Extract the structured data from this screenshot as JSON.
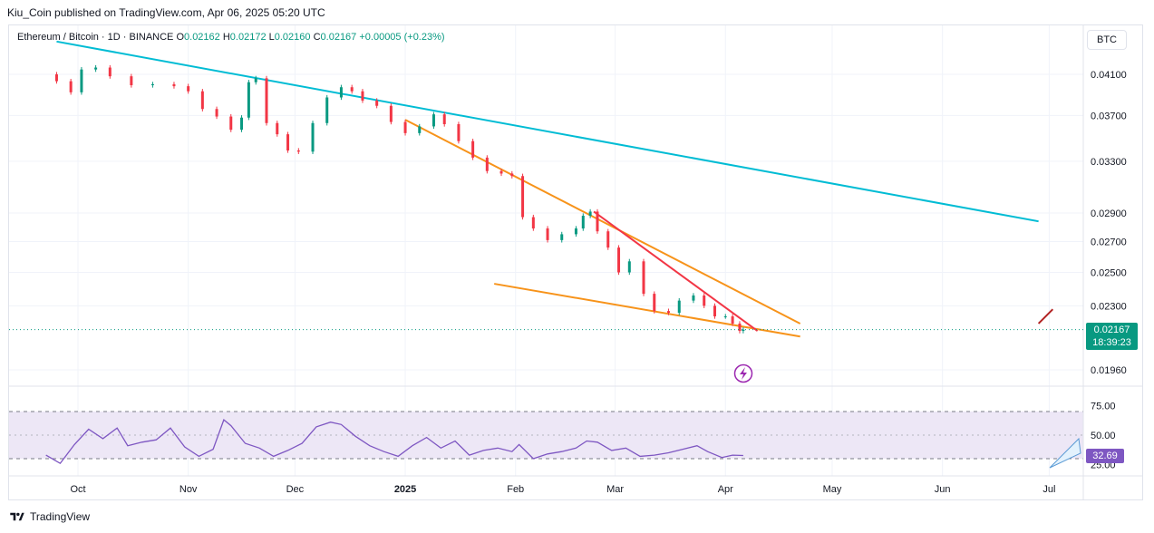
{
  "header": {
    "published_text": "Kiu_Coin published on TradingView.com, Apr 06, 2025 05:20 UTC"
  },
  "legend": {
    "symbol": "Ethereum / Bitcoin · 1D · BINANCE",
    "o_label": "O",
    "o_value": "0.02162",
    "h_label": "H",
    "h_value": "0.02172",
    "l_label": "L",
    "l_value": "0.02160",
    "c_label": "C",
    "c_value": "0.02167",
    "change": "+0.00005 (+0.23%)"
  },
  "currency_button": "BTC",
  "last_price": {
    "value": "0.02167",
    "countdown": "18:39:23"
  },
  "rsi_value": "32.69",
  "footer": {
    "brand": "TradingView"
  },
  "colors": {
    "up": "#089981",
    "down": "#f23645",
    "channel": "#f7931a",
    "trendline_long": "#00bcd4",
    "trendline_short": "#f23645",
    "rsi": "#7e57c2",
    "rsi_band": "#ede7f6"
  },
  "chart_data": [
    {
      "type": "candlestick",
      "title": "Ethereum / Bitcoin · 1D · BINANCE",
      "x_ticks": [
        "Oct",
        "Nov",
        "Dec",
        "2025",
        "Feb",
        "Mar",
        "Apr",
        "May",
        "Jun",
        "Jul"
      ],
      "x_tick_dates": [
        "2024-10-01",
        "2024-11-01",
        "2024-12-01",
        "2025-01-01",
        "2025-02-01",
        "2025-03-01",
        "2025-04-01",
        "2025-05-01",
        "2025-06-01",
        "2025-07-01"
      ],
      "y_ticks": [
        "0.04100",
        "0.03700",
        "0.03300",
        "0.02900",
        "0.02700",
        "0.02500",
        "0.02300",
        "0.01960"
      ],
      "y_tick_values": [
        0.041,
        0.037,
        0.033,
        0.029,
        0.027,
        0.025,
        0.023,
        0.0196
      ],
      "y_scale": "log",
      "ylim": [
        0.0192,
        0.0442
      ],
      "last_close": 0.02167,
      "grid": true,
      "close_series": [
        [
          "2024-09-22",
          0.041
        ],
        [
          "2024-09-25",
          0.0403
        ],
        [
          "2024-09-29",
          0.0392
        ],
        [
          "2024-10-02",
          0.0415
        ],
        [
          "2024-10-06",
          0.0417
        ],
        [
          "2024-10-10",
          0.0408
        ],
        [
          "2024-10-16",
          0.0399
        ],
        [
          "2024-10-22",
          0.04
        ],
        [
          "2024-10-28",
          0.0398
        ],
        [
          "2024-11-01",
          0.0393
        ],
        [
          "2024-11-05",
          0.0376
        ],
        [
          "2024-11-09",
          0.0369
        ],
        [
          "2024-11-13",
          0.0357
        ],
        [
          "2024-11-16",
          0.0368
        ],
        [
          "2024-11-18",
          0.0402
        ],
        [
          "2024-11-20",
          0.0406
        ],
        [
          "2024-11-23",
          0.0363
        ],
        [
          "2024-11-26",
          0.0353
        ],
        [
          "2024-11-29",
          0.0339
        ],
        [
          "2024-12-02",
          0.0338
        ],
        [
          "2024-12-06",
          0.0363
        ],
        [
          "2024-12-10",
          0.0387
        ],
        [
          "2024-12-14",
          0.0397
        ],
        [
          "2024-12-17",
          0.0393
        ],
        [
          "2024-12-20",
          0.0384
        ],
        [
          "2024-12-24",
          0.0379
        ],
        [
          "2024-12-28",
          0.0364
        ],
        [
          "2025-01-01",
          0.0354
        ],
        [
          "2025-01-05",
          0.036
        ],
        [
          "2025-01-09",
          0.0371
        ],
        [
          "2025-01-12",
          0.0362
        ],
        [
          "2025-01-16",
          0.0347
        ],
        [
          "2025-01-20",
          0.0333
        ],
        [
          "2025-01-24",
          0.0322
        ],
        [
          "2025-01-28",
          0.032
        ],
        [
          "2025-01-31",
          0.0318
        ],
        [
          "2025-02-03",
          0.0287
        ],
        [
          "2025-02-06",
          0.0279
        ],
        [
          "2025-02-10",
          0.0271
        ],
        [
          "2025-02-14",
          0.0275
        ],
        [
          "2025-02-18",
          0.0279
        ],
        [
          "2025-02-20",
          0.0288
        ],
        [
          "2025-02-22",
          0.0291
        ],
        [
          "2025-02-24",
          0.0277
        ],
        [
          "2025-02-27",
          0.0266
        ],
        [
          "2025-03-02",
          0.025
        ],
        [
          "2025-03-05",
          0.0257
        ],
        [
          "2025-03-09",
          0.0237
        ],
        [
          "2025-03-12",
          0.0227
        ],
        [
          "2025-03-16",
          0.0226
        ],
        [
          "2025-03-19",
          0.0233
        ],
        [
          "2025-03-23",
          0.0236
        ],
        [
          "2025-03-26",
          0.023
        ],
        [
          "2025-03-29",
          0.0224
        ],
        [
          "2025-04-01",
          0.0224
        ],
        [
          "2025-04-03",
          0.022
        ],
        [
          "2025-04-05",
          0.0216
        ],
        [
          "2025-04-06",
          0.02167
        ]
      ],
      "annotations": [
        {
          "name": "long-term descending trendline",
          "color": "#00bcd4",
          "points": [
            [
              "2024-09-25",
              0.0445
            ],
            [
              "2025-06-28",
              0.0284
            ]
          ]
        },
        {
          "name": "falling wedge upper line",
          "color": "#f7931a",
          "points": [
            [
              "2025-01-01",
              0.0366
            ],
            [
              "2025-04-22",
              0.022
            ]
          ]
        },
        {
          "name": "falling wedge lower line",
          "color": "#f7931a",
          "points": [
            [
              "2025-01-26",
              0.0243
            ],
            [
              "2025-04-22",
              0.0213
            ]
          ]
        },
        {
          "name": "short-term resistance line",
          "color": "#f23645",
          "points": [
            [
              "2025-02-23",
              0.0291
            ],
            [
              "2025-04-10",
              0.0216
            ]
          ]
        },
        {
          "name": "projected breakout arrow",
          "color": "#b22222",
          "points": [
            [
              "2025-06-28",
              0.022
            ],
            [
              "2025-07-02",
              0.0228
            ]
          ]
        }
      ]
    },
    {
      "type": "line",
      "title": "",
      "y_ticks": [
        "75.00",
        "50.00",
        "25.00"
      ],
      "y_tick_values": [
        75,
        50,
        25
      ],
      "ylim": [
        15,
        85
      ],
      "band": [
        30,
        70
      ],
      "last_value": 32.69,
      "series": [
        {
          "values": [
            [
              "2024-09-22",
              33
            ],
            [
              "2024-09-26",
              26
            ],
            [
              "2024-09-30",
              42
            ],
            [
              "2024-10-04",
              55
            ],
            [
              "2024-10-08",
              47
            ],
            [
              "2024-10-12",
              56
            ],
            [
              "2024-10-15",
              41
            ],
            [
              "2024-10-19",
              44
            ],
            [
              "2024-10-23",
              46
            ],
            [
              "2024-10-27",
              56
            ],
            [
              "2024-10-31",
              40
            ],
            [
              "2024-11-04",
              32
            ],
            [
              "2024-11-08",
              38
            ],
            [
              "2024-11-11",
              63
            ],
            [
              "2024-11-13",
              58
            ],
            [
              "2024-11-17",
              43
            ],
            [
              "2024-11-21",
              39
            ],
            [
              "2024-11-25",
              32
            ],
            [
              "2024-11-29",
              37
            ],
            [
              "2024-12-03",
              43
            ],
            [
              "2024-12-07",
              57
            ],
            [
              "2024-12-11",
              61
            ],
            [
              "2024-12-14",
              59
            ],
            [
              "2024-12-18",
              49
            ],
            [
              "2024-12-22",
              41
            ],
            [
              "2024-12-26",
              36
            ],
            [
              "2024-12-30",
              32
            ],
            [
              "2025-01-03",
              41
            ],
            [
              "2025-01-07",
              48
            ],
            [
              "2025-01-11",
              39
            ],
            [
              "2025-01-15",
              45
            ],
            [
              "2025-01-19",
              33
            ],
            [
              "2025-01-23",
              37
            ],
            [
              "2025-01-27",
              39
            ],
            [
              "2025-01-31",
              36
            ],
            [
              "2025-02-02",
              42
            ],
            [
              "2025-02-06",
              30
            ],
            [
              "2025-02-10",
              34
            ],
            [
              "2025-02-14",
              36
            ],
            [
              "2025-02-18",
              39
            ],
            [
              "2025-02-21",
              45
            ],
            [
              "2025-02-24",
              44
            ],
            [
              "2025-02-28",
              37
            ],
            [
              "2025-03-04",
              39
            ],
            [
              "2025-03-08",
              32
            ],
            [
              "2025-03-12",
              33
            ],
            [
              "2025-03-16",
              35
            ],
            [
              "2025-03-20",
              38
            ],
            [
              "2025-03-24",
              41
            ],
            [
              "2025-03-27",
              36
            ],
            [
              "2025-03-31",
              31
            ],
            [
              "2025-04-03",
              33
            ],
            [
              "2025-04-06",
              32.69
            ]
          ]
        }
      ]
    }
  ]
}
